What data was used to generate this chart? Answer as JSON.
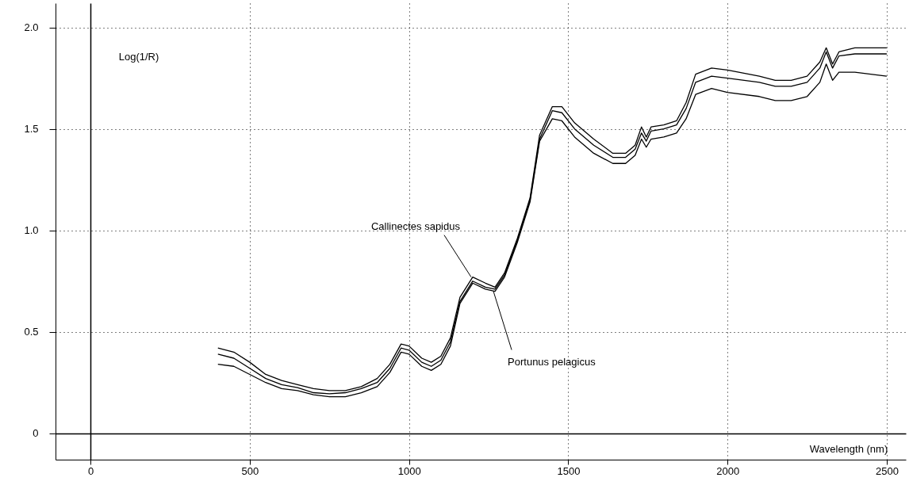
{
  "chart_data": {
    "type": "line",
    "xlabel": "Wavelength (nm)",
    "ylabel": "Log(1/R)",
    "x": [
      400,
      450,
      500,
      550,
      600,
      650,
      700,
      750,
      800,
      850,
      900,
      940,
      975,
      1000,
      1040,
      1070,
      1100,
      1130,
      1160,
      1200,
      1240,
      1270,
      1300,
      1340,
      1380,
      1410,
      1450,
      1480,
      1520,
      1580,
      1640,
      1680,
      1710,
      1730,
      1745,
      1760,
      1800,
      1840,
      1870,
      1900,
      1950,
      2000,
      2100,
      2150,
      2200,
      2250,
      2290,
      2310,
      2330,
      2350,
      2400,
      2500
    ],
    "series": [
      {
        "color": "#000000",
        "values": [
          0.42,
          0.4,
          0.35,
          0.29,
          0.26,
          0.24,
          0.22,
          0.21,
          0.21,
          0.23,
          0.27,
          0.34,
          0.44,
          0.43,
          0.37,
          0.35,
          0.38,
          0.47,
          0.67,
          0.77,
          0.74,
          0.72,
          0.79,
          0.96,
          1.16,
          1.47,
          1.61,
          1.61,
          1.53,
          1.45,
          1.38,
          1.38,
          1.42,
          1.51,
          1.46,
          1.51,
          1.52,
          1.54,
          1.63,
          1.77,
          1.8,
          1.79,
          1.76,
          1.74,
          1.74,
          1.76,
          1.83,
          1.9,
          1.82,
          1.88,
          1.9,
          1.9
        ]
      },
      {
        "color": "#000000",
        "values": [
          0.39,
          0.37,
          0.32,
          0.27,
          0.24,
          0.225,
          0.2,
          0.195,
          0.2,
          0.22,
          0.25,
          0.32,
          0.42,
          0.41,
          0.35,
          0.33,
          0.36,
          0.45,
          0.65,
          0.75,
          0.72,
          0.71,
          0.78,
          0.95,
          1.15,
          1.45,
          1.59,
          1.58,
          1.5,
          1.42,
          1.36,
          1.36,
          1.4,
          1.48,
          1.44,
          1.49,
          1.5,
          1.52,
          1.6,
          1.73,
          1.76,
          1.75,
          1.73,
          1.71,
          1.71,
          1.73,
          1.8,
          1.88,
          1.8,
          1.86,
          1.87,
          1.87
        ]
      },
      {
        "color": "#000000",
        "values": [
          0.34,
          0.33,
          0.29,
          0.25,
          0.22,
          0.21,
          0.19,
          0.18,
          0.18,
          0.2,
          0.23,
          0.3,
          0.4,
          0.39,
          0.33,
          0.31,
          0.34,
          0.43,
          0.64,
          0.74,
          0.71,
          0.7,
          0.77,
          0.94,
          1.14,
          1.44,
          1.55,
          1.54,
          1.46,
          1.38,
          1.33,
          1.33,
          1.37,
          1.45,
          1.41,
          1.45,
          1.46,
          1.48,
          1.55,
          1.67,
          1.7,
          1.68,
          1.66,
          1.64,
          1.64,
          1.66,
          1.73,
          1.82,
          1.74,
          1.78,
          1.78,
          1.76
        ]
      }
    ],
    "xlim": [
      -110,
      2560
    ],
    "ylim": [
      -0.13,
      2.12
    ],
    "xticks": [
      0,
      500,
      1000,
      1500,
      2000,
      2500
    ],
    "yticks": [
      0,
      0.5,
      {
        "value": 1,
        "label": "1.0"
      },
      1.5,
      {
        "value": 2,
        "label": "2.0"
      }
    ],
    "grid": true,
    "line_style": "solid",
    "annotations": [
      {
        "text": "Callinectes sapidus",
        "x": 1195,
        "y": 0.77
      },
      {
        "text": "Portunus pelagicus",
        "x": 1265,
        "y": 0.7
      }
    ]
  }
}
